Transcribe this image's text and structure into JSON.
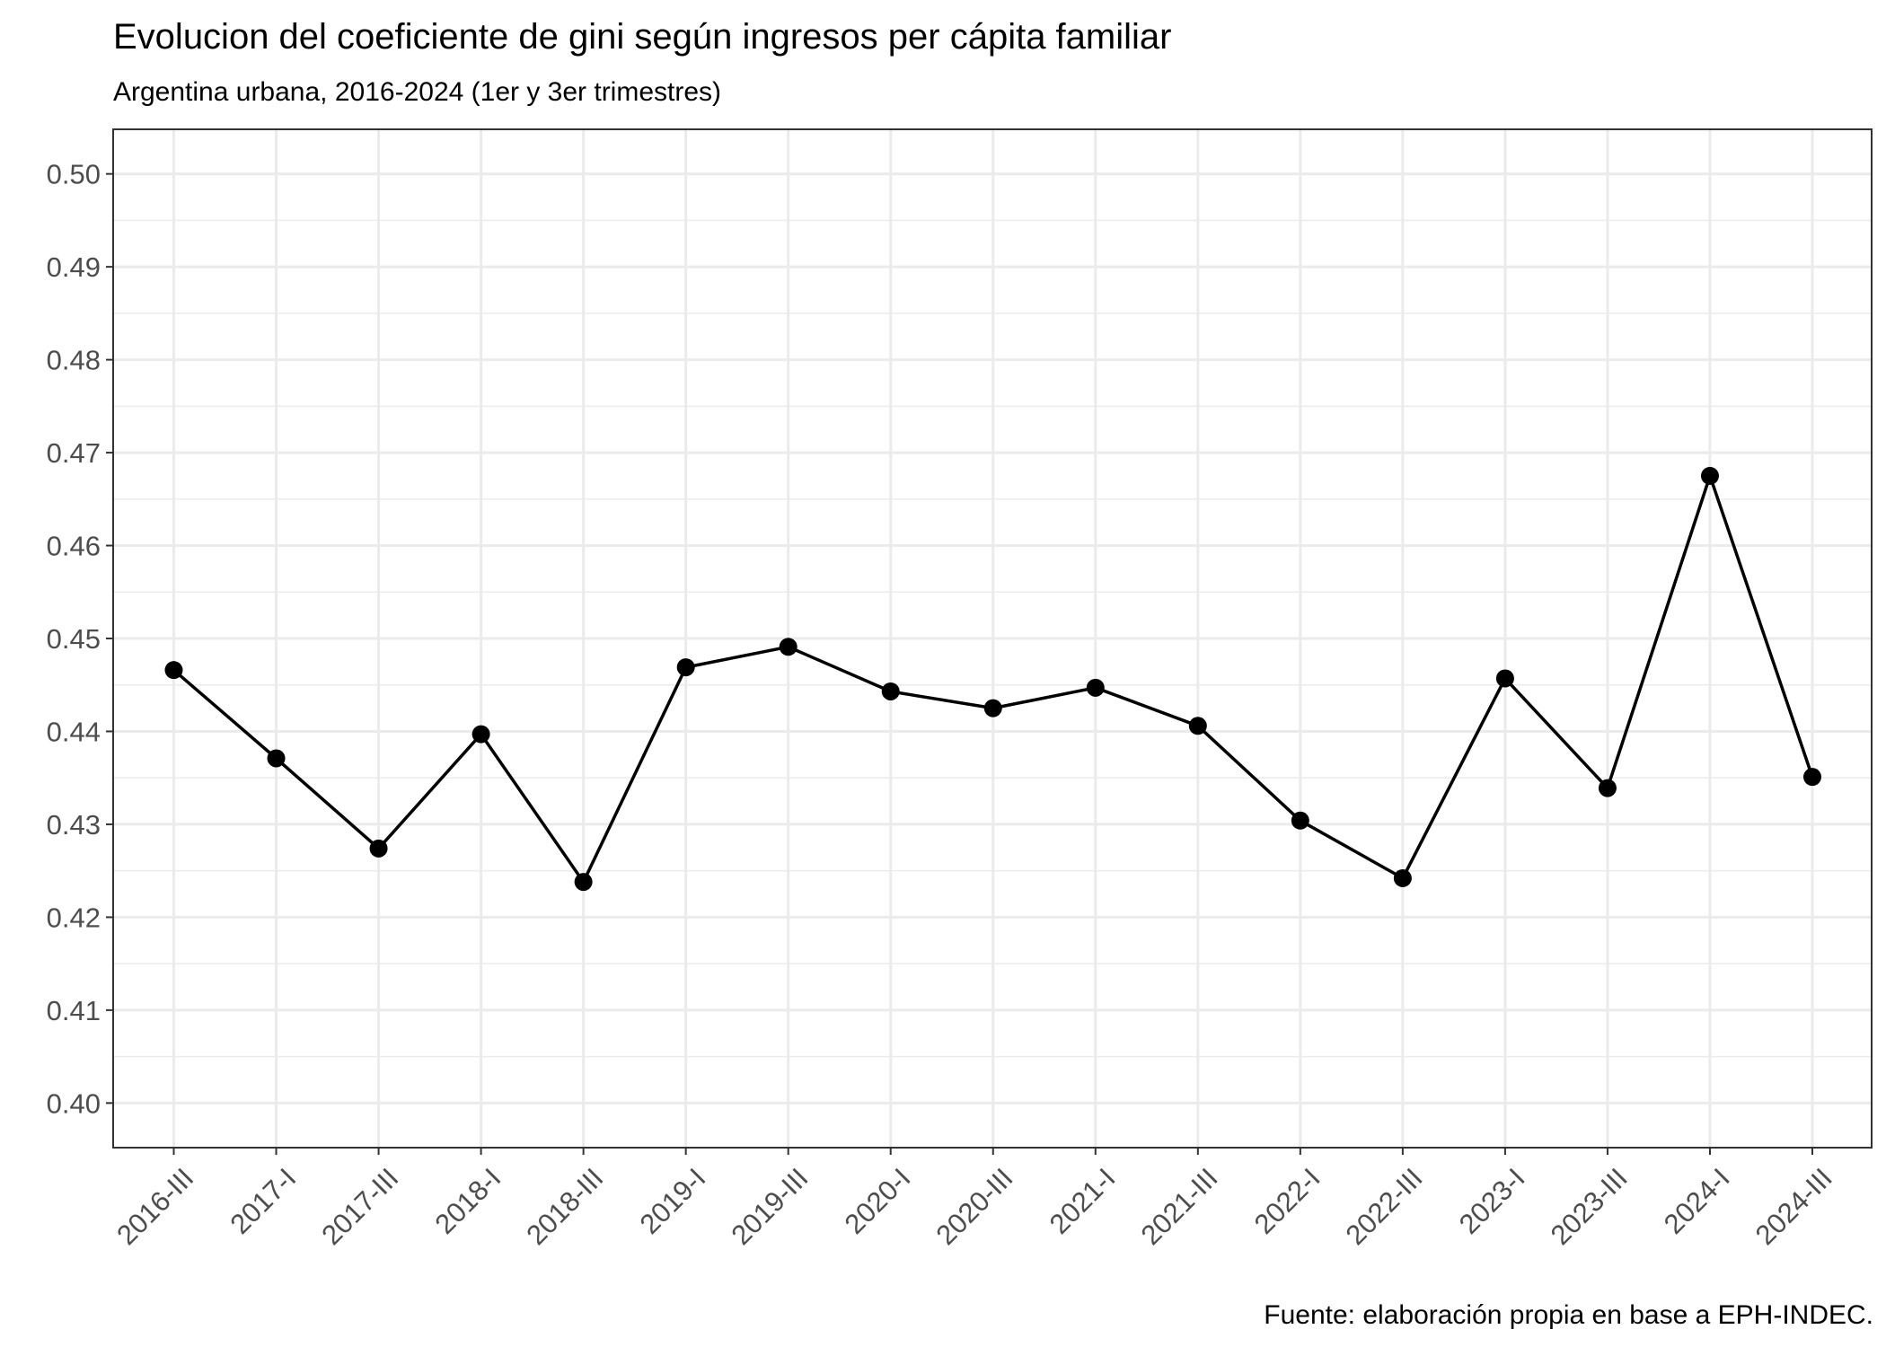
{
  "chart_data": {
    "type": "line",
    "title": "Evolucion del coeficiente de gini según ingresos per cápita familiar",
    "subtitle": "Argentina urbana, 2016-2024 (1er y 3er trimestres)",
    "caption": "Fuente: elaboración propia en base a EPH-INDEC.",
    "xlabel": "",
    "ylabel": "",
    "categories": [
      "2016-III",
      "2017-I",
      "2017-III",
      "2018-I",
      "2018-III",
      "2019-I",
      "2019-III",
      "2020-I",
      "2020-III",
      "2021-I",
      "2021-III",
      "2022-I",
      "2022-III",
      "2023-I",
      "2023-III",
      "2024-I",
      "2024-III"
    ],
    "series": [
      {
        "values": [
          0.4466,
          0.4371,
          0.4274,
          0.4397,
          0.4238,
          0.4469,
          0.4491,
          0.4443,
          0.4425,
          0.4447,
          0.4406,
          0.4304,
          0.4242,
          0.4457,
          0.4339,
          0.4675,
          0.4351
        ],
        "color": "#000000"
      }
    ],
    "yticks": [
      "0.40",
      "0.41",
      "0.42",
      "0.43",
      "0.44",
      "0.45",
      "0.46",
      "0.47",
      "0.48",
      "0.49",
      "0.50"
    ],
    "ylim": [
      0.3952,
      0.5048
    ],
    "grid": true,
    "marker": "circle",
    "legend": "none"
  }
}
